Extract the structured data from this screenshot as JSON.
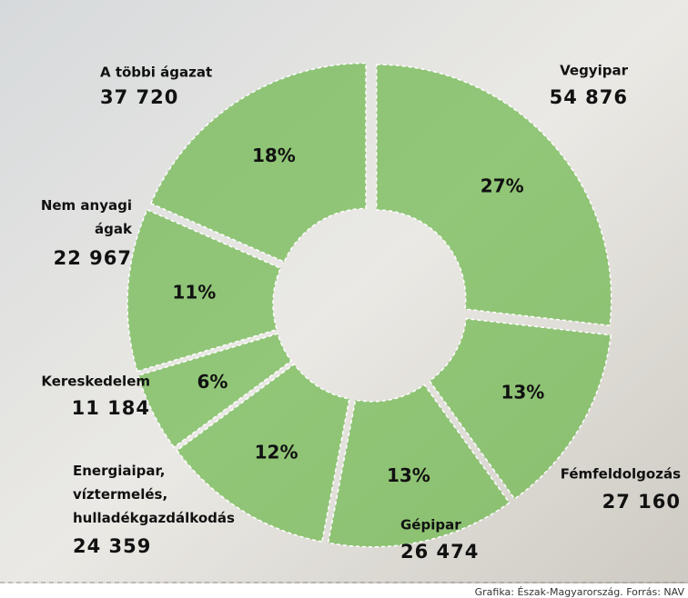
{
  "chart_data": {
    "type": "donut",
    "categories": [
      "Vegyipar",
      "Fémfeldolgozás",
      "Gépipar",
      "Energiaipar,\nvíztermelés,\nhulladékgazdálkodás",
      "Kereskedelem",
      "Nem anyagi\nágak",
      "A többi ágazat"
    ],
    "values": [
      54876,
      27160,
      26474,
      24359,
      11184,
      22967,
      37720
    ],
    "value_labels": [
      "54 876",
      "27 160",
      "26 474",
      "24 359",
      "11 184",
      "22 967",
      "37 720"
    ],
    "percents": [
      27,
      13,
      13,
      12,
      6,
      11,
      18
    ],
    "percent_labels": [
      "27%",
      "13%",
      "13%",
      "12%",
      "6%",
      "11%",
      "18%"
    ],
    "color": "#6fb84e",
    "source": "Grafika: Észak-Magyarország. Forrás: NAV"
  }
}
